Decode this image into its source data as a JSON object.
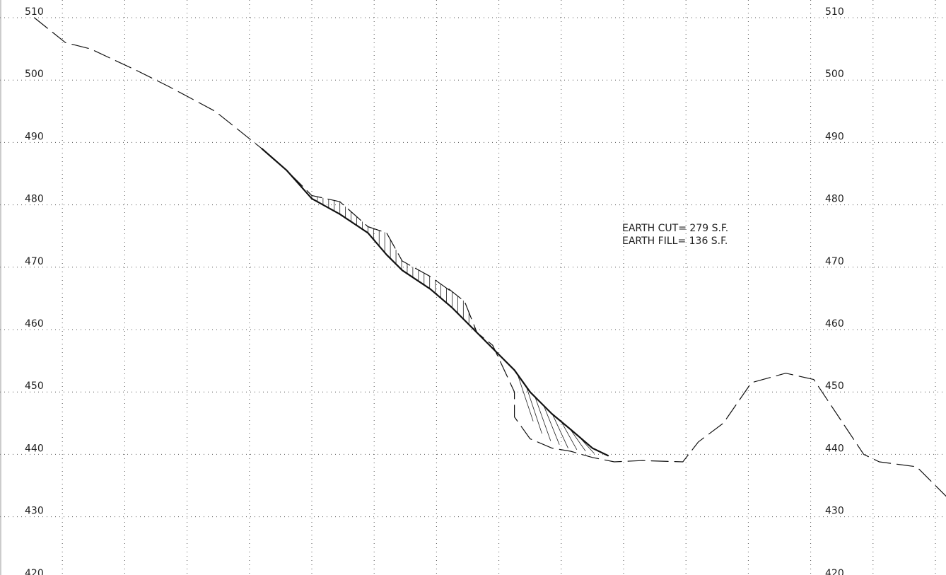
{
  "annotations": {
    "earth_cut": "EARTH  CUT=  279  S.F.",
    "earth_fill": "EARTH  FILL=  136  S.F."
  },
  "chart_data": {
    "type": "line",
    "title": "",
    "xlabel": "",
    "ylabel": "",
    "ylim": [
      420,
      512
    ],
    "y_ticks": [
      510,
      500,
      490,
      480,
      470,
      460,
      450,
      440,
      430,
      420
    ],
    "tick_labels_left": [
      "510",
      "500",
      "490",
      "480",
      "470",
      "460",
      "450",
      "440",
      "430",
      "420"
    ],
    "tick_labels_right": [
      "510",
      "500",
      "490",
      "480",
      "470",
      "460",
      "450",
      "440",
      "430",
      "420"
    ],
    "grid": true,
    "x_grid_count": 15,
    "series": [
      {
        "style": "dashed",
        "points": [
          [
            0.55,
            510
          ],
          [
            1.05,
            506
          ],
          [
            1.45,
            505
          ],
          [
            2.2,
            501.5
          ],
          [
            2.7,
            499
          ],
          [
            3.45,
            495
          ],
          [
            4.2,
            489
          ],
          [
            4.6,
            485.5
          ],
          [
            5.0,
            481.5
          ],
          [
            5.45,
            480.5
          ],
          [
            5.9,
            476.5
          ],
          [
            6.2,
            475.5
          ],
          [
            6.45,
            471
          ],
          [
            6.9,
            468.5
          ],
          [
            7.25,
            466
          ],
          [
            7.2,
            466.5
          ],
          [
            7.45,
            464.5
          ],
          [
            7.65,
            459.5
          ],
          [
            7.9,
            457.5
          ],
          [
            8.25,
            450
          ],
          [
            8.25,
            446
          ],
          [
            8.5,
            442.5
          ],
          [
            8.85,
            441
          ],
          [
            9.15,
            440.5
          ],
          [
            9.5,
            439.5
          ],
          [
            9.85,
            438.8
          ],
          [
            10.3,
            439
          ],
          [
            10.95,
            438.8
          ],
          [
            11.2,
            442
          ],
          [
            11.6,
            445
          ],
          [
            12.05,
            451.5
          ],
          [
            12.6,
            453
          ],
          [
            13.05,
            452
          ],
          [
            13.45,
            446
          ],
          [
            13.85,
            440
          ],
          [
            14.1,
            438.8
          ],
          [
            14.7,
            438
          ],
          [
            15.2,
            433
          ],
          [
            15.45,
            428
          ],
          [
            15.85,
            425
          ],
          [
            16.2,
            423
          ]
        ]
      },
      {
        "style": "solid",
        "points": [
          [
            4.2,
            489
          ],
          [
            4.6,
            485.5
          ],
          [
            5.0,
            481
          ],
          [
            5.45,
            478.5
          ],
          [
            5.9,
            475.5
          ],
          [
            6.2,
            472
          ],
          [
            6.45,
            469.5
          ],
          [
            6.9,
            466.5
          ],
          [
            7.25,
            463.5
          ],
          [
            7.6,
            460
          ],
          [
            7.9,
            457
          ],
          [
            8.25,
            453.5
          ],
          [
            8.5,
            450
          ],
          [
            8.85,
            446.5
          ],
          [
            9.15,
            444
          ],
          [
            9.5,
            441
          ],
          [
            9.75,
            439.8
          ]
        ]
      }
    ]
  }
}
